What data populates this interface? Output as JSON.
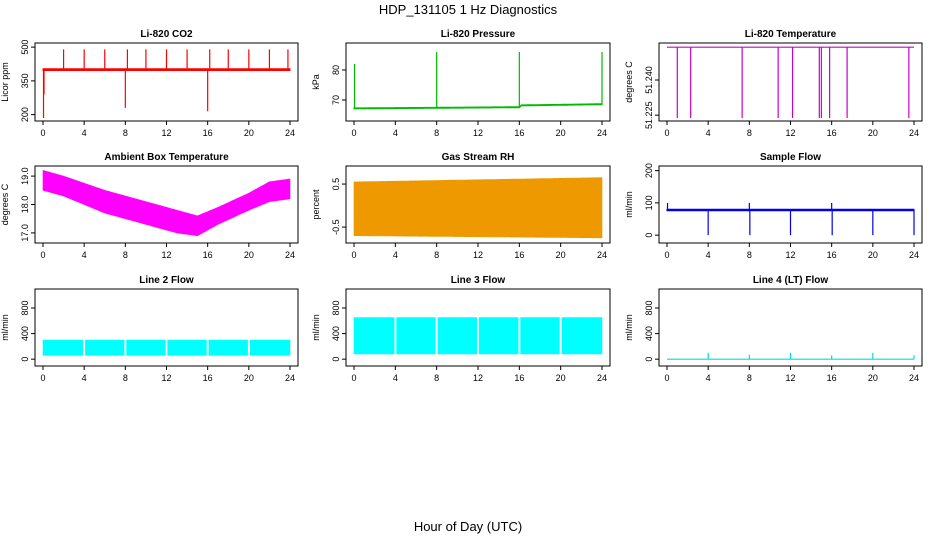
{
  "figure": {
    "title": "HDP_131105  1 Hz Diagnostics",
    "xlabel": "Hour of Day (UTC)"
  },
  "chart_data": [
    {
      "type": "line",
      "title": "Li-820 CO2",
      "ylabel": "Licor ppm",
      "color": "#ff0000",
      "xlim": [
        0,
        24
      ],
      "xticks": [
        0,
        4,
        8,
        12,
        16,
        20,
        24
      ],
      "ylim": [
        185,
        505
      ],
      "yticks": [
        200,
        350,
        500
      ],
      "yticklabels": [
        "200",
        "350",
        "500"
      ],
      "baseline": 400,
      "band": 8,
      "spikes": [
        [
          0.05,
          185
        ],
        [
          0.1,
          290
        ],
        [
          2,
          490
        ],
        [
          4,
          490
        ],
        [
          6,
          490
        ],
        [
          8,
          230
        ],
        [
          8.2,
          490
        ],
        [
          10,
          490
        ],
        [
          12,
          490
        ],
        [
          14,
          490
        ],
        [
          16,
          215
        ],
        [
          16.2,
          490
        ],
        [
          18,
          490
        ],
        [
          20,
          490
        ],
        [
          22,
          490
        ],
        [
          23.8,
          490
        ]
      ]
    },
    {
      "type": "line",
      "title": "Li-820 Pressure",
      "ylabel": "kPa",
      "color": "#00bb00",
      "xlim": [
        0,
        24
      ],
      "xticks": [
        0,
        4,
        8,
        12,
        16,
        20,
        24
      ],
      "ylim": [
        64,
        88
      ],
      "yticks": [
        70,
        80
      ],
      "yticklabels": [
        "70",
        "80"
      ],
      "trend": [
        [
          0,
          67.2
        ],
        [
          16,
          67.6
        ],
        [
          16.1,
          68.2
        ],
        [
          24,
          68.6
        ]
      ],
      "band": 0.3,
      "spikes": [
        [
          0.05,
          82
        ],
        [
          8,
          86
        ],
        [
          16,
          86
        ],
        [
          24,
          86
        ]
      ]
    },
    {
      "type": "line",
      "title": "Li-820 Temperature",
      "ylabel": "degrees C",
      "color": "#cc00cc",
      "xlim": [
        0,
        24
      ],
      "xticks": [
        0,
        4,
        8,
        12,
        16,
        20,
        24
      ],
      "ylim": [
        51.2238,
        51.2545
      ],
      "yticks": [
        51.225,
        51.24
      ],
      "yticklabels": [
        "51.225",
        "51.240"
      ],
      "baseline": 51.254,
      "band": 0,
      "spikes": [
        [
          1,
          51.2238
        ],
        [
          2.3,
          51.2238
        ],
        [
          7.3,
          51.2238
        ],
        [
          10.8,
          51.2238
        ],
        [
          12.2,
          51.2238
        ],
        [
          14.8,
          51.2238
        ],
        [
          15,
          51.2238
        ],
        [
          15.8,
          51.2238
        ],
        [
          17.5,
          51.2238
        ],
        [
          23.5,
          51.2238
        ]
      ]
    },
    {
      "type": "band",
      "title": "Ambient Box Temperature",
      "ylabel": "degrees C",
      "color": "#ff00ff",
      "xlim": [
        0,
        24
      ],
      "xticks": [
        0,
        4,
        8,
        12,
        16,
        20,
        24
      ],
      "ylim": [
        16.75,
        19.25
      ],
      "yticks": [
        17.0,
        18.0,
        19.0
      ],
      "yticklabels": [
        "17.0",
        "18.0",
        "19.0"
      ],
      "upper": [
        [
          0,
          19.2
        ],
        [
          2,
          19.0
        ],
        [
          6,
          18.5
        ],
        [
          10,
          18.1
        ],
        [
          13,
          17.8
        ],
        [
          15,
          17.6
        ],
        [
          17,
          17.9
        ],
        [
          20,
          18.4
        ],
        [
          22,
          18.8
        ],
        [
          24,
          18.9
        ]
      ],
      "lower": [
        [
          0,
          18.5
        ],
        [
          2,
          18.3
        ],
        [
          6,
          17.7
        ],
        [
          10,
          17.3
        ],
        [
          13,
          17.0
        ],
        [
          15,
          16.9
        ],
        [
          17,
          17.3
        ],
        [
          20,
          17.8
        ],
        [
          22,
          18.1
        ],
        [
          24,
          18.2
        ]
      ]
    },
    {
      "type": "band",
      "title": "Gas Stream RH",
      "ylabel": "percent",
      "color": "#ee9900",
      "xlim": [
        0,
        24
      ],
      "xticks": [
        0,
        4,
        8,
        12,
        16,
        20,
        24
      ],
      "ylim": [
        -0.8,
        0.85
      ],
      "yticks": [
        -0.5,
        0.5
      ],
      "yticklabels": [
        "-0.5",
        "0.5"
      ],
      "upper": [
        [
          0,
          0.55
        ],
        [
          24,
          0.65
        ]
      ],
      "lower": [
        [
          0,
          -0.7
        ],
        [
          24,
          -0.75
        ]
      ]
    },
    {
      "type": "line",
      "title": "Sample Flow",
      "ylabel": "ml/min",
      "color": "#0000ee",
      "xlim": [
        0,
        24
      ],
      "xticks": [
        0,
        4,
        8,
        12,
        16,
        20,
        24
      ],
      "ylim": [
        -15,
        205
      ],
      "yticks": [
        0,
        100,
        200
      ],
      "yticklabels": [
        "0",
        "100",
        "200"
      ],
      "baseline": 78,
      "band": 5,
      "spikes": [
        [
          0.05,
          100
        ],
        [
          4,
          0
        ],
        [
          8,
          100
        ],
        [
          8.05,
          0
        ],
        [
          12,
          0
        ],
        [
          16,
          100
        ],
        [
          16.05,
          0
        ],
        [
          20,
          0
        ],
        [
          24,
          0
        ]
      ]
    },
    {
      "type": "band",
      "title": "Line 2 Flow",
      "ylabel": "ml/min",
      "color": "#00ffff",
      "xlim": [
        0,
        24
      ],
      "xticks": [
        0,
        4,
        8,
        12,
        16,
        20,
        24
      ],
      "ylim": [
        -60,
        1050
      ],
      "yticks": [
        0,
        400,
        800
      ],
      "yticklabels": [
        "0",
        "400",
        "800"
      ],
      "upper": [
        [
          0,
          300
        ],
        [
          24,
          300
        ]
      ],
      "lower": [
        [
          0,
          60
        ],
        [
          24,
          60
        ]
      ],
      "gaps": [
        4,
        8,
        12,
        16,
        20
      ]
    },
    {
      "type": "band",
      "title": "Line 3 Flow",
      "ylabel": "ml/min",
      "color": "#00ffff",
      "xlim": [
        0,
        24
      ],
      "xticks": [
        0,
        4,
        8,
        12,
        16,
        20,
        24
      ],
      "ylim": [
        -60,
        1050
      ],
      "yticks": [
        0,
        400,
        800
      ],
      "yticklabels": [
        "0",
        "400",
        "800"
      ],
      "upper": [
        [
          0,
          650
        ],
        [
          24,
          650
        ]
      ],
      "lower": [
        [
          0,
          80
        ],
        [
          24,
          80
        ]
      ],
      "gaps": [
        4,
        8,
        12,
        16,
        20
      ]
    },
    {
      "type": "line",
      "title": "Line 4 (LT) Flow",
      "ylabel": "ml/min",
      "color": "#00dddd",
      "xlim": [
        0,
        24
      ],
      "xticks": [
        0,
        4,
        8,
        12,
        16,
        20,
        24
      ],
      "ylim": [
        -60,
        1050
      ],
      "yticks": [
        0,
        400,
        800
      ],
      "yticklabels": [
        "0",
        "400",
        "800"
      ],
      "baseline": 0,
      "band": 0,
      "spikes": [
        [
          4,
          100
        ],
        [
          8,
          70
        ],
        [
          12,
          100
        ],
        [
          16,
          60
        ],
        [
          20,
          100
        ],
        [
          24,
          60
        ]
      ]
    }
  ]
}
